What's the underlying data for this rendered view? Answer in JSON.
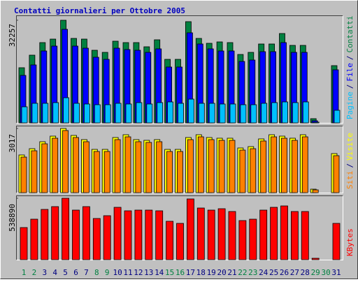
{
  "chart_data": {
    "type": "bar",
    "title": "Contatti giornalieri per Ottobre 2005",
    "background": "#c0c0c0",
    "categories": [
      "1",
      "2",
      "3",
      "4",
      "5",
      "6",
      "7",
      "8",
      "9",
      "10",
      "11",
      "12",
      "13",
      "14",
      "15",
      "16",
      "17",
      "18",
      "19",
      "20",
      "21",
      "22",
      "23",
      "24",
      "25",
      "26",
      "27",
      "28",
      "29",
      "30",
      "31"
    ],
    "category_colors": [
      "#008040",
      "#008040",
      "#000080",
      "#000080",
      "#000080",
      "#000080",
      "#000080",
      "#008040",
      "#008040",
      "#000080",
      "#000080",
      "#000080",
      "#000080",
      "#000080",
      "#008040",
      "#008040",
      "#000080",
      "#000080",
      "#000080",
      "#000080",
      "#000080",
      "#008040",
      "#008040",
      "#000080",
      "#000080",
      "#000080",
      "#000080",
      "#000080",
      "#008040",
      "#008040",
      "#000080"
    ],
    "legend_separator": "/",
    "panels": [
      {
        "ylim": [
          0,
          32257
        ],
        "yticks": [
          32257
        ],
        "series": [
          {
            "name": "Contatti",
            "color": "#008040",
            "values": [
              17335,
              21285,
              25235,
              26332,
              32257,
              26551,
              26332,
              22821,
              22163,
              25674,
              25235,
              25235,
              23918,
              26113,
              19968,
              19968,
              31818,
              26551,
              25015,
              25454,
              25235,
              21504,
              22163,
              24796,
              24796,
              28088,
              24357,
              24357,
              1317,
              0,
              17993
            ]
          },
          {
            "name": "File",
            "color": "#0000ff",
            "values": [
              14921,
              18213,
              22602,
              24138,
              29404,
              24138,
              23479,
              20627,
              19968,
              23479,
              23041,
              22821,
              22163,
              23260,
              17555,
              17555,
              28307,
              24796,
              23260,
              22602,
              22602,
              19310,
              19749,
              22382,
              22382,
              25235,
              22163,
              22163,
              658,
              0,
              16677
            ]
          },
          {
            "name": "Pagine",
            "color": "#00c0ff",
            "values": [
              5047,
              6144,
              6144,
              6364,
              7900,
              6144,
              5925,
              5705,
              5705,
              6144,
              5925,
              6364,
              5925,
              6364,
              6583,
              6144,
              7461,
              6144,
              6144,
              5925,
              5925,
              5705,
              5705,
              6144,
              6364,
              6583,
              6364,
              6583,
              220,
              0,
              3950
            ]
          }
        ]
      },
      {
        "ylim": [
          0,
          3017
        ],
        "yticks": [
          3017
        ],
        "series": [
          {
            "name": "Visite",
            "color": "#ffff00",
            "values": [
              1771,
              2066,
              2394,
              2656,
              3017,
              2689,
              2492,
              2033,
              2033,
              2591,
              2722,
              2492,
              2459,
              2492,
              2033,
              2033,
              2591,
              2722,
              2591,
              2558,
              2558,
              2099,
              2164,
              2525,
              2722,
              2656,
              2558,
              2722,
              164,
              0,
              1836
            ]
          },
          {
            "name": "Siti",
            "color": "#ff8000",
            "values": [
              1672,
              1968,
              2296,
              2558,
              2919,
              2591,
              2394,
              1935,
              1935,
              2492,
              2623,
              2394,
              2361,
              2394,
              1935,
              1935,
              2492,
              2623,
              2492,
              2459,
              2459,
              2000,
              2066,
              2427,
              2623,
              2558,
              2459,
              2623,
              131,
              0,
              1738
            ]
          }
        ]
      },
      {
        "ylim": [
          0,
          538890
        ],
        "yticks": [
          538890
        ],
        "series": [
          {
            "name": "KBytes",
            "color": "#ff0000",
            "values": [
              281700,
              355190,
              440920,
              465420,
              538890,
              434800,
              465420,
              361310,
              385810,
              459290,
              428680,
              434800,
              434800,
              428680,
              336820,
              318440,
              532770,
              453170,
              434800,
              447040,
              422550,
              342940,
              355190,
              434800,
              459290,
              471540,
              422550,
              422550,
              12250,
              0,
              318440
            ]
          }
        ]
      }
    ]
  }
}
